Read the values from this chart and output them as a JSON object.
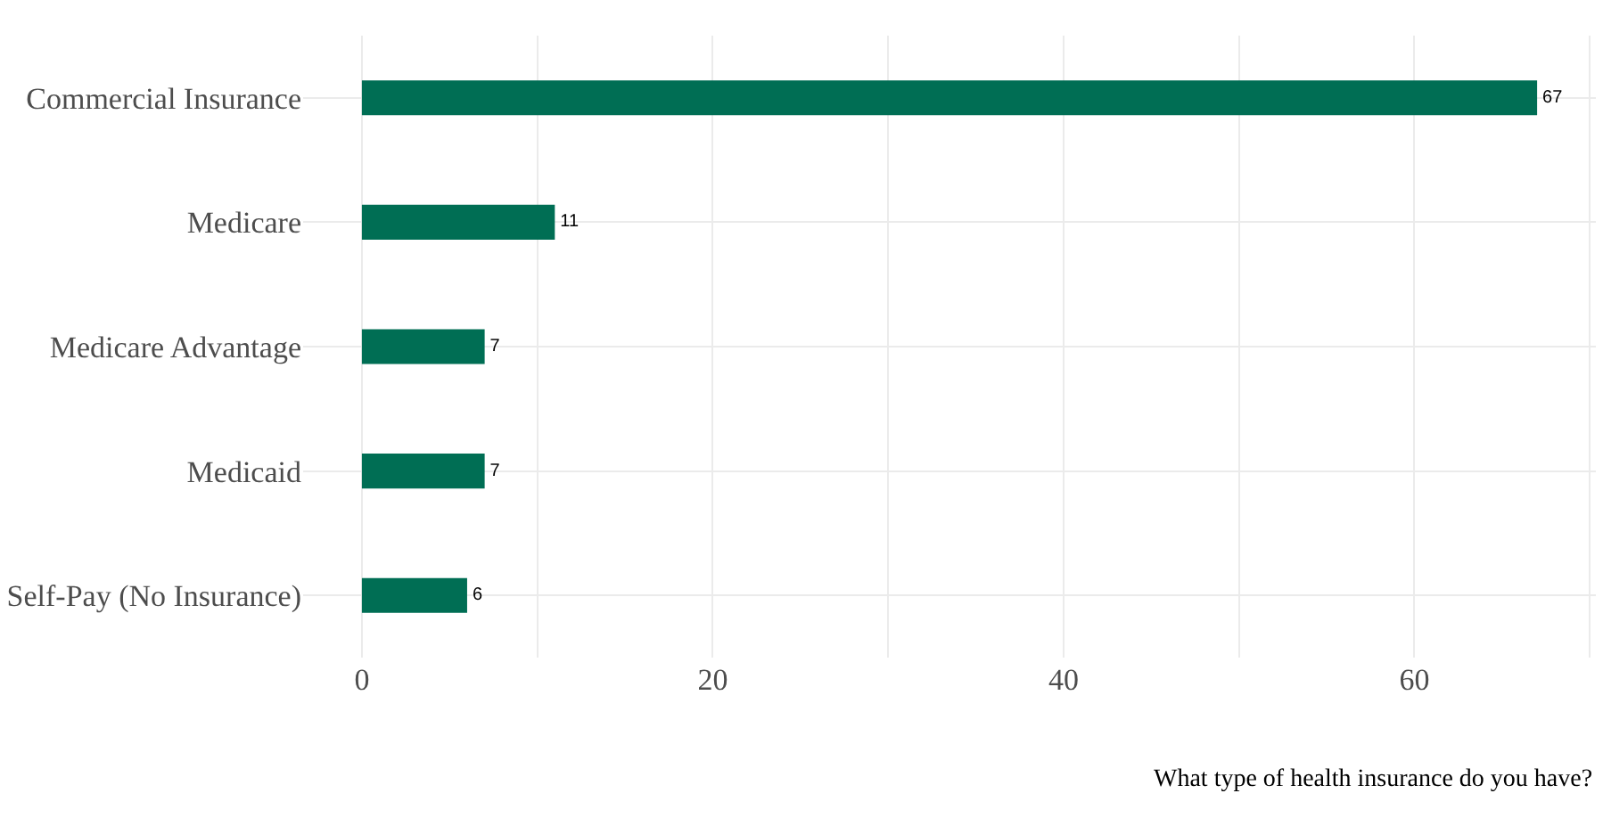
{
  "chart_data": {
    "type": "bar",
    "orientation": "horizontal",
    "categories": [
      "Commercial Insurance",
      "Medicare",
      "Medicare Advantage",
      "Medicaid",
      "Self-Pay (No Insurance)"
    ],
    "values": [
      67,
      11,
      7,
      7,
      6
    ],
    "color": "#006e54",
    "data_labels": true,
    "xlim": [
      -3.35,
      70.35
    ],
    "xticks": [
      0,
      {
        "value": 10,
        "label": null
      },
      20,
      {
        "value": 30,
        "label": null
      },
      40,
      {
        "value": 50,
        "label": null
      },
      60,
      {
        "value": 70,
        "label": null
      }
    ],
    "grid": true,
    "legend": false,
    "annotations": [
      "What type of health insurance do you have?"
    ]
  }
}
